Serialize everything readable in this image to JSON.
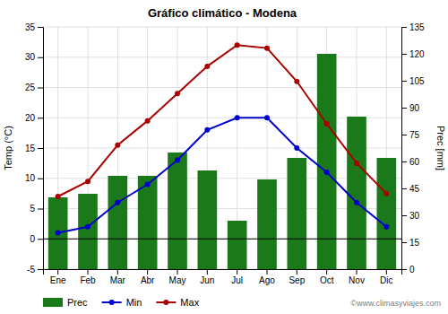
{
  "chart_data": {
    "type": "bar",
    "title": "Gráfico climático - Modena",
    "categories": [
      "Ene",
      "Feb",
      "Mar",
      "Abr",
      "May",
      "Jun",
      "Jul",
      "Ago",
      "Sep",
      "Oct",
      "Nov",
      "Dic"
    ],
    "series": [
      {
        "name": "Prec",
        "type": "bar",
        "axis": "y2",
        "color": "#1a7a1a",
        "values": [
          40,
          42,
          52,
          52,
          65,
          55,
          27,
          50,
          62,
          120,
          85,
          62
        ]
      },
      {
        "name": "Min",
        "type": "line",
        "color": "#0000cc",
        "marker": "circle",
        "values": [
          1,
          2,
          6,
          9,
          13,
          18,
          20,
          20,
          15,
          11,
          6,
          2
        ]
      },
      {
        "name": "Max",
        "type": "line",
        "color": "#aa0000",
        "marker": "circle",
        "values": [
          7,
          9.5,
          15.5,
          19.5,
          24,
          28.5,
          32,
          31.5,
          26,
          19,
          12.5,
          7.5
        ]
      }
    ],
    "ylabel": "Temp (°C)",
    "y2label": "Prec [mm]",
    "ylim": [
      -5,
      35
    ],
    "yticks": [
      -5,
      0,
      5,
      10,
      15,
      20,
      25,
      30,
      35
    ],
    "y2lim": [
      0,
      135
    ],
    "y2ticks": [
      0,
      15,
      30,
      45,
      60,
      75,
      90,
      105,
      120,
      135
    ],
    "hlines": [
      0
    ],
    "grid": true,
    "legend": "bottom",
    "annotations": [
      "©www.climasyviajes.com"
    ]
  }
}
